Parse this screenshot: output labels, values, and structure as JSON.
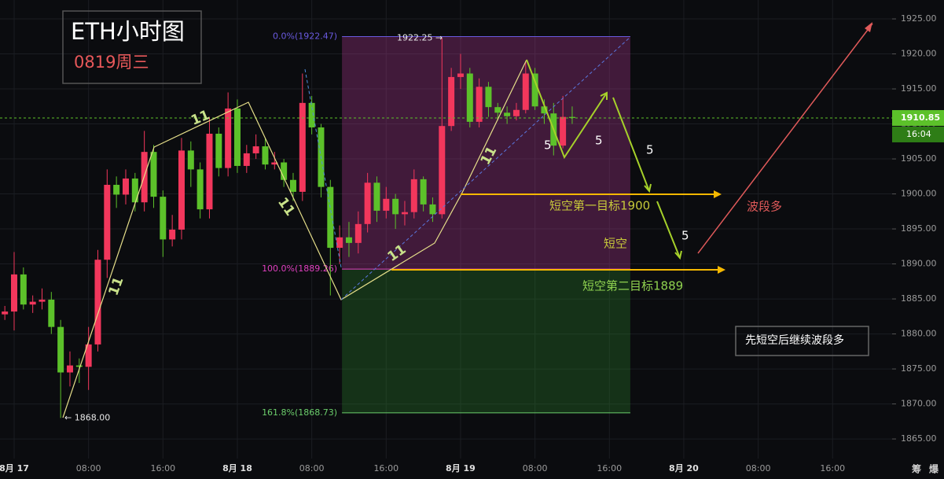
{
  "chart_data": {
    "type": "candlestick",
    "title": "ETH小时图",
    "subtitle": "0819周三",
    "x": [
      -1,
      0,
      1,
      2,
      3,
      4,
      5,
      6,
      7,
      8,
      9,
      10,
      11,
      12,
      13,
      14,
      15,
      16,
      17,
      18,
      19,
      20,
      21,
      22,
      23,
      24,
      25,
      26,
      27,
      28,
      29,
      30,
      31,
      32,
      33,
      34,
      35,
      36,
      37,
      38,
      39,
      40,
      41,
      42,
      43,
      44,
      45,
      46,
      47,
      48,
      49,
      50,
      51,
      52,
      53,
      54,
      55,
      56,
      57,
      58,
      59,
      60
    ],
    "open": [
      1882.8,
      1883.2,
      1888.5,
      1884.2,
      1884.6,
      1884.9,
      1881,
      1874.5,
      1875.5,
      1875.3,
      1878.5,
      1890.6,
      1901.3,
      1899.9,
      1902.2,
      1898.8,
      1906,
      1899.6,
      1893.5,
      1894.9,
      1906.2,
      1903.5,
      1897.8,
      1908.6,
      1903.7,
      1912.2,
      1904,
      1905.8,
      1906.8,
      1904.2,
      1904.5,
      1902,
      1900.3,
      1913,
      1909.5,
      1901,
      1892.3,
      1893.8,
      1893,
      1895.7,
      1901.6,
      1897.6,
      1899.3,
      1897.1,
      1897.4,
      1902.1,
      1898.5,
      1897.1,
      1909.7,
      1916.7,
      1917.2,
      1910.3,
      1915.3,
      1912.4,
      1911.6,
      1911.1,
      1912,
      1917.2,
      1912.5,
      1911.5,
      1906.9,
      1911
    ],
    "high": [
      1884,
      1891.7,
      1889.5,
      1885.5,
      1886.5,
      1886,
      1882,
      1877.5,
      1876.5,
      1881,
      1892,
      1903.5,
      1902.5,
      1903.5,
      1903,
      1909,
      1907,
      1900.5,
      1897,
      1908,
      1907.5,
      1904.5,
      1911,
      1909.5,
      1914.5,
      1913.5,
      1907,
      1908.5,
      1908,
      1906,
      1905,
      1903,
      1917.2,
      1914,
      1910,
      1902,
      1895.5,
      1896,
      1897.5,
      1903,
      1902.5,
      1901,
      1900,
      1899,
      1903.5,
      1902.5,
      1899.5,
      1922.25,
      1918,
      1920,
      1918,
      1916.5,
      1916,
      1913,
      1912.5,
      1913,
      1919,
      1918,
      1913.5,
      1913,
      1914,
      1912.5
    ],
    "low": [
      1882,
      1880.5,
      1883.5,
      1883,
      1883.5,
      1880,
      1868,
      1872.5,
      1873,
      1872,
      1877.5,
      1888,
      1898,
      1898.5,
      1897.5,
      1897.5,
      1898,
      1891,
      1892.5,
      1893.5,
      1901,
      1896.5,
      1896.5,
      1902.5,
      1902.5,
      1903,
      1903,
      1905,
      1903.5,
      1903.5,
      1901,
      1899,
      1899,
      1908.5,
      1899.5,
      1885.5,
      1890,
      1891,
      1891.5,
      1894.5,
      1896,
      1896.5,
      1895,
      1895.5,
      1896.5,
      1897.5,
      1896,
      1896.5,
      1909,
      1915,
      1909.5,
      1909.5,
      1911,
      1910.5,
      1910,
      1910.5,
      1911.5,
      1912,
      1910,
      1905.5,
      1906.5,
      1910
    ],
    "close": [
      1883.2,
      1888.5,
      1884.2,
      1884.6,
      1884.9,
      1881,
      1874.5,
      1875.5,
      1875.3,
      1878.5,
      1890.6,
      1901.3,
      1899.9,
      1902.2,
      1898.8,
      1906,
      1899.6,
      1893.5,
      1894.9,
      1906.2,
      1903.5,
      1897.8,
      1908.6,
      1903.7,
      1912.2,
      1904,
      1905.8,
      1906.8,
      1904.2,
      1904.5,
      1902,
      1900.3,
      1913,
      1909.5,
      1901,
      1892.3,
      1893.8,
      1893,
      1895.7,
      1901.6,
      1897.6,
      1899.3,
      1897.1,
      1897.4,
      1902.1,
      1898.5,
      1897.1,
      1909.7,
      1916.7,
      1917.2,
      1910.3,
      1915.3,
      1912.4,
      1911.6,
      1911.1,
      1912,
      1917.2,
      1912.5,
      1911.5,
      1906.9,
      1911,
      1910.85
    ],
    "up_color": "#f2375c",
    "down_color": "#5cc12a",
    "xlim": [
      -1.52,
      94.4
    ],
    "ylim": [
      1862.2,
      1927.7
    ],
    "xticks": [
      {
        "value": 0,
        "label": "8月 17"
      },
      {
        "value": 8,
        "label": "08:00"
      },
      {
        "value": 16,
        "label": "16:00"
      },
      {
        "value": 24,
        "label": "8月 18"
      },
      {
        "value": 32,
        "label": "08:00"
      },
      {
        "value": 40,
        "label": "16:00"
      },
      {
        "value": 48,
        "label": "8月 19"
      },
      {
        "value": 56,
        "label": "08:00"
      },
      {
        "value": 64,
        "label": "16:00"
      },
      {
        "value": 72,
        "label": "8月 20"
      },
      {
        "value": 80,
        "label": "08:00"
      },
      {
        "value": 88,
        "label": "16:00"
      }
    ],
    "yticks": [
      {
        "value": 1865,
        "label": "1865.00"
      },
      {
        "value": 1870,
        "label": "1870.00"
      },
      {
        "value": 1875,
        "label": "1875.00"
      },
      {
        "value": 1880,
        "label": "1880.00"
      },
      {
        "value": 1885,
        "label": "1885.00"
      },
      {
        "value": 1890,
        "label": "1890.00"
      },
      {
        "value": 1895,
        "label": "1895.00"
      },
      {
        "value": 1900,
        "label": "1900.00"
      },
      {
        "value": 1905,
        "label": "1905.00"
      },
      {
        "value": 1910,
        "label": "1910.00"
      },
      {
        "value": 1915,
        "label": "1915.00"
      },
      {
        "value": 1920,
        "label": "1920.00"
      },
      {
        "value": 1925,
        "label": "1925.00"
      }
    ],
    "grid": true,
    "last_price": {
      "value": 1910.85,
      "label": "1910.85",
      "time": "16:04"
    },
    "extremes": [
      {
        "value": 1922.25,
        "label": "1922.25 →"
      },
      {
        "value": 1868.0,
        "label": "← 1868.00"
      }
    ],
    "fib_x": [
      35.25,
      66.25
    ],
    "fib_levels": [
      {
        "value": 1922.47,
        "label": "0.0%(1922.47)"
      },
      {
        "value": 1889.26,
        "label": "100.0%(1889.26)"
      },
      {
        "value": 1868.73,
        "label": "161.8%(1868.73)"
      }
    ],
    "annotations": [
      "11",
      "11",
      "11",
      "11",
      "11",
      "5",
      "5",
      "5",
      "5",
      "短空第一目标1900",
      "短空",
      "短空第二目标1889",
      "波段多",
      "先短空后继续波段多"
    ],
    "toolbar": [
      "筹",
      "爆"
    ]
  }
}
